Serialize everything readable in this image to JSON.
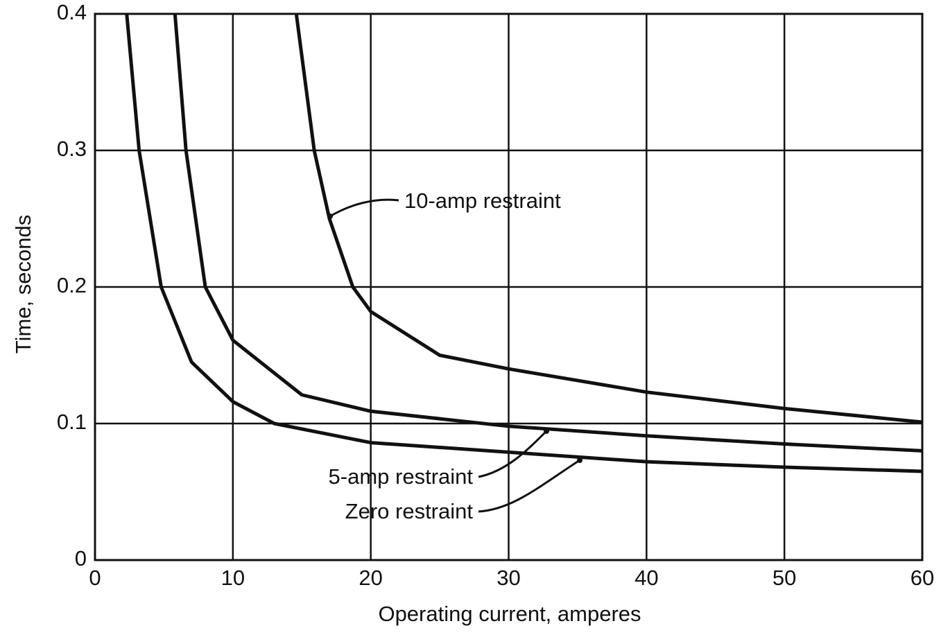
{
  "chart_data": {
    "type": "line",
    "x_label": "Operating current, amperes",
    "y_label": "Time, seconds",
    "xlim": [
      0,
      60
    ],
    "ylim": [
      0,
      0.4
    ],
    "xticks": [
      0,
      10,
      20,
      30,
      40,
      50,
      60
    ],
    "yticks": [
      0,
      0.1,
      0.2,
      0.3,
      0.4
    ],
    "grid": true,
    "series": [
      {
        "name": "Zero restraint",
        "color": "#111111",
        "x": [
          2.3,
          3.2,
          4.8,
          7,
          10,
          13,
          20,
          30,
          40,
          50,
          60
        ],
        "values": [
          0.4,
          0.3,
          0.2,
          0.145,
          0.116,
          0.1,
          0.086,
          0.079,
          0.072,
          0.068,
          0.065
        ]
      },
      {
        "name": "5-amp restraint",
        "color": "#111111",
        "x": [
          5.8,
          6.6,
          8.0,
          10,
          15,
          20,
          30,
          40,
          50,
          60
        ],
        "values": [
          0.4,
          0.3,
          0.2,
          0.161,
          0.121,
          0.109,
          0.098,
          0.091,
          0.085,
          0.08
        ]
      },
      {
        "name": "10-amp restraint",
        "color": "#111111",
        "x": [
          14.6,
          15.9,
          17,
          18.7,
          20,
          25,
          30,
          40,
          50,
          60
        ],
        "values": [
          0.4,
          0.3,
          0.25,
          0.2,
          0.182,
          0.15,
          0.14,
          0.123,
          0.111,
          0.101
        ]
      }
    ]
  }
}
